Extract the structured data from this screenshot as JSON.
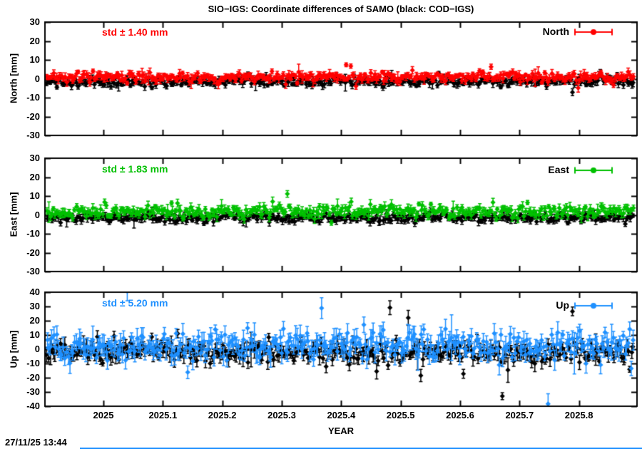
{
  "header": {
    "title": "SIO−IGS: Coordinate differences of SAMO (black: COD−IGS)"
  },
  "footer": {
    "timestamp": "27/11/25 13:44"
  },
  "colors": {
    "north_accent": "#ff0000",
    "east_accent": "#00c000",
    "up_accent": "#1e90ff",
    "reference_series": "#000000",
    "frame": "#000000",
    "status_line": "#1e90ff"
  },
  "chart_data": {
    "type": "scatter",
    "title": "SIO−IGS: Coordinate differences of SAMO (black: COD−IGS)",
    "subtitle": "",
    "xlabel": "YEAR",
    "x_range": [
      2024.902,
      2025.898
    ],
    "x_ticks": [
      "2025",
      "2025.1",
      "2025.2",
      "2025.3",
      "2025.4",
      "2025.5",
      "2025.6",
      "2025.7",
      "2025.8"
    ],
    "x_tick_values": [
      2025.0,
      2025.1,
      2025.2,
      2025.3,
      2025.4,
      2025.5,
      2025.6,
      2025.7,
      2025.8
    ],
    "grid": false,
    "legend_position": "top-right-inside",
    "panels": [
      {
        "id": "north",
        "ylabel": "North [mm]",
        "legend_label": "North",
        "std_label": "std ± 1.40 mm",
        "std_mm": 1.4,
        "ylim": [
          -30,
          30
        ],
        "ytick_values": [
          30,
          20,
          10,
          0,
          -10,
          -20,
          -30
        ],
        "ytick_labels": [
          "30",
          "20",
          "10",
          "0",
          "-10",
          "-20",
          "-30"
        ],
        "accent_color": "#ff0000",
        "series": [
          {
            "name": "COD−IGS",
            "color": "#000000",
            "mean_mm": -1.4,
            "std_mm": 1.3,
            "err_mm": 1.6,
            "points": 360,
            "seed": 101,
            "skew": "none"
          },
          {
            "name": "SIO−IGS",
            "color": "#ff0000",
            "mean_mm": 0.9,
            "std_mm": 1.3,
            "err_mm": 1.6,
            "points": 360,
            "seed": 202,
            "skew": "none"
          }
        ]
      },
      {
        "id": "east",
        "ylabel": "East [mm]",
        "legend_label": "East",
        "std_label": "std ± 1.83 mm",
        "std_mm": 1.83,
        "ylim": [
          -30,
          30
        ],
        "ytick_values": [
          30,
          20,
          10,
          0,
          -10,
          -20,
          -30
        ],
        "ytick_labels": [
          "30",
          "20",
          "10",
          "0",
          "-10",
          "-20",
          "-30"
        ],
        "accent_color": "#00c000",
        "series": [
          {
            "name": "COD−IGS",
            "color": "#000000",
            "mean_mm": -1.5,
            "std_mm": 1.2,
            "err_mm": 1.6,
            "points": 360,
            "seed": 303,
            "skew": "none"
          },
          {
            "name": "SIO−IGS",
            "color": "#00c000",
            "mean_mm": 1.6,
            "std_mm": 1.7,
            "err_mm": 1.8,
            "points": 360,
            "seed": 404,
            "skew": "up"
          }
        ]
      },
      {
        "id": "up",
        "ylabel": "Up [mm]",
        "legend_label": "Up",
        "std_label": "std ± 5.20 mm",
        "std_mm": 5.2,
        "ylim": [
          -40,
          40
        ],
        "ytick_values": [
          40,
          30,
          20,
          10,
          0,
          -10,
          -20,
          -30,
          -40
        ],
        "ytick_labels": [
          "40",
          "30",
          "20",
          "10",
          "0",
          "-10",
          "-20",
          "-30",
          "-40"
        ],
        "accent_color": "#1e90ff",
        "series": [
          {
            "name": "COD−IGS",
            "color": "#000000",
            "mean_mm": -2.0,
            "std_mm": 3.6,
            "err_mm": 4.0,
            "points": 360,
            "seed": 505,
            "skew": "none"
          },
          {
            "name": "SIO−IGS",
            "color": "#1e90ff",
            "mean_mm": 2.4,
            "std_mm": 5.0,
            "err_mm": 5.5,
            "points": 360,
            "seed": 606,
            "skew": "both"
          }
        ]
      }
    ]
  }
}
